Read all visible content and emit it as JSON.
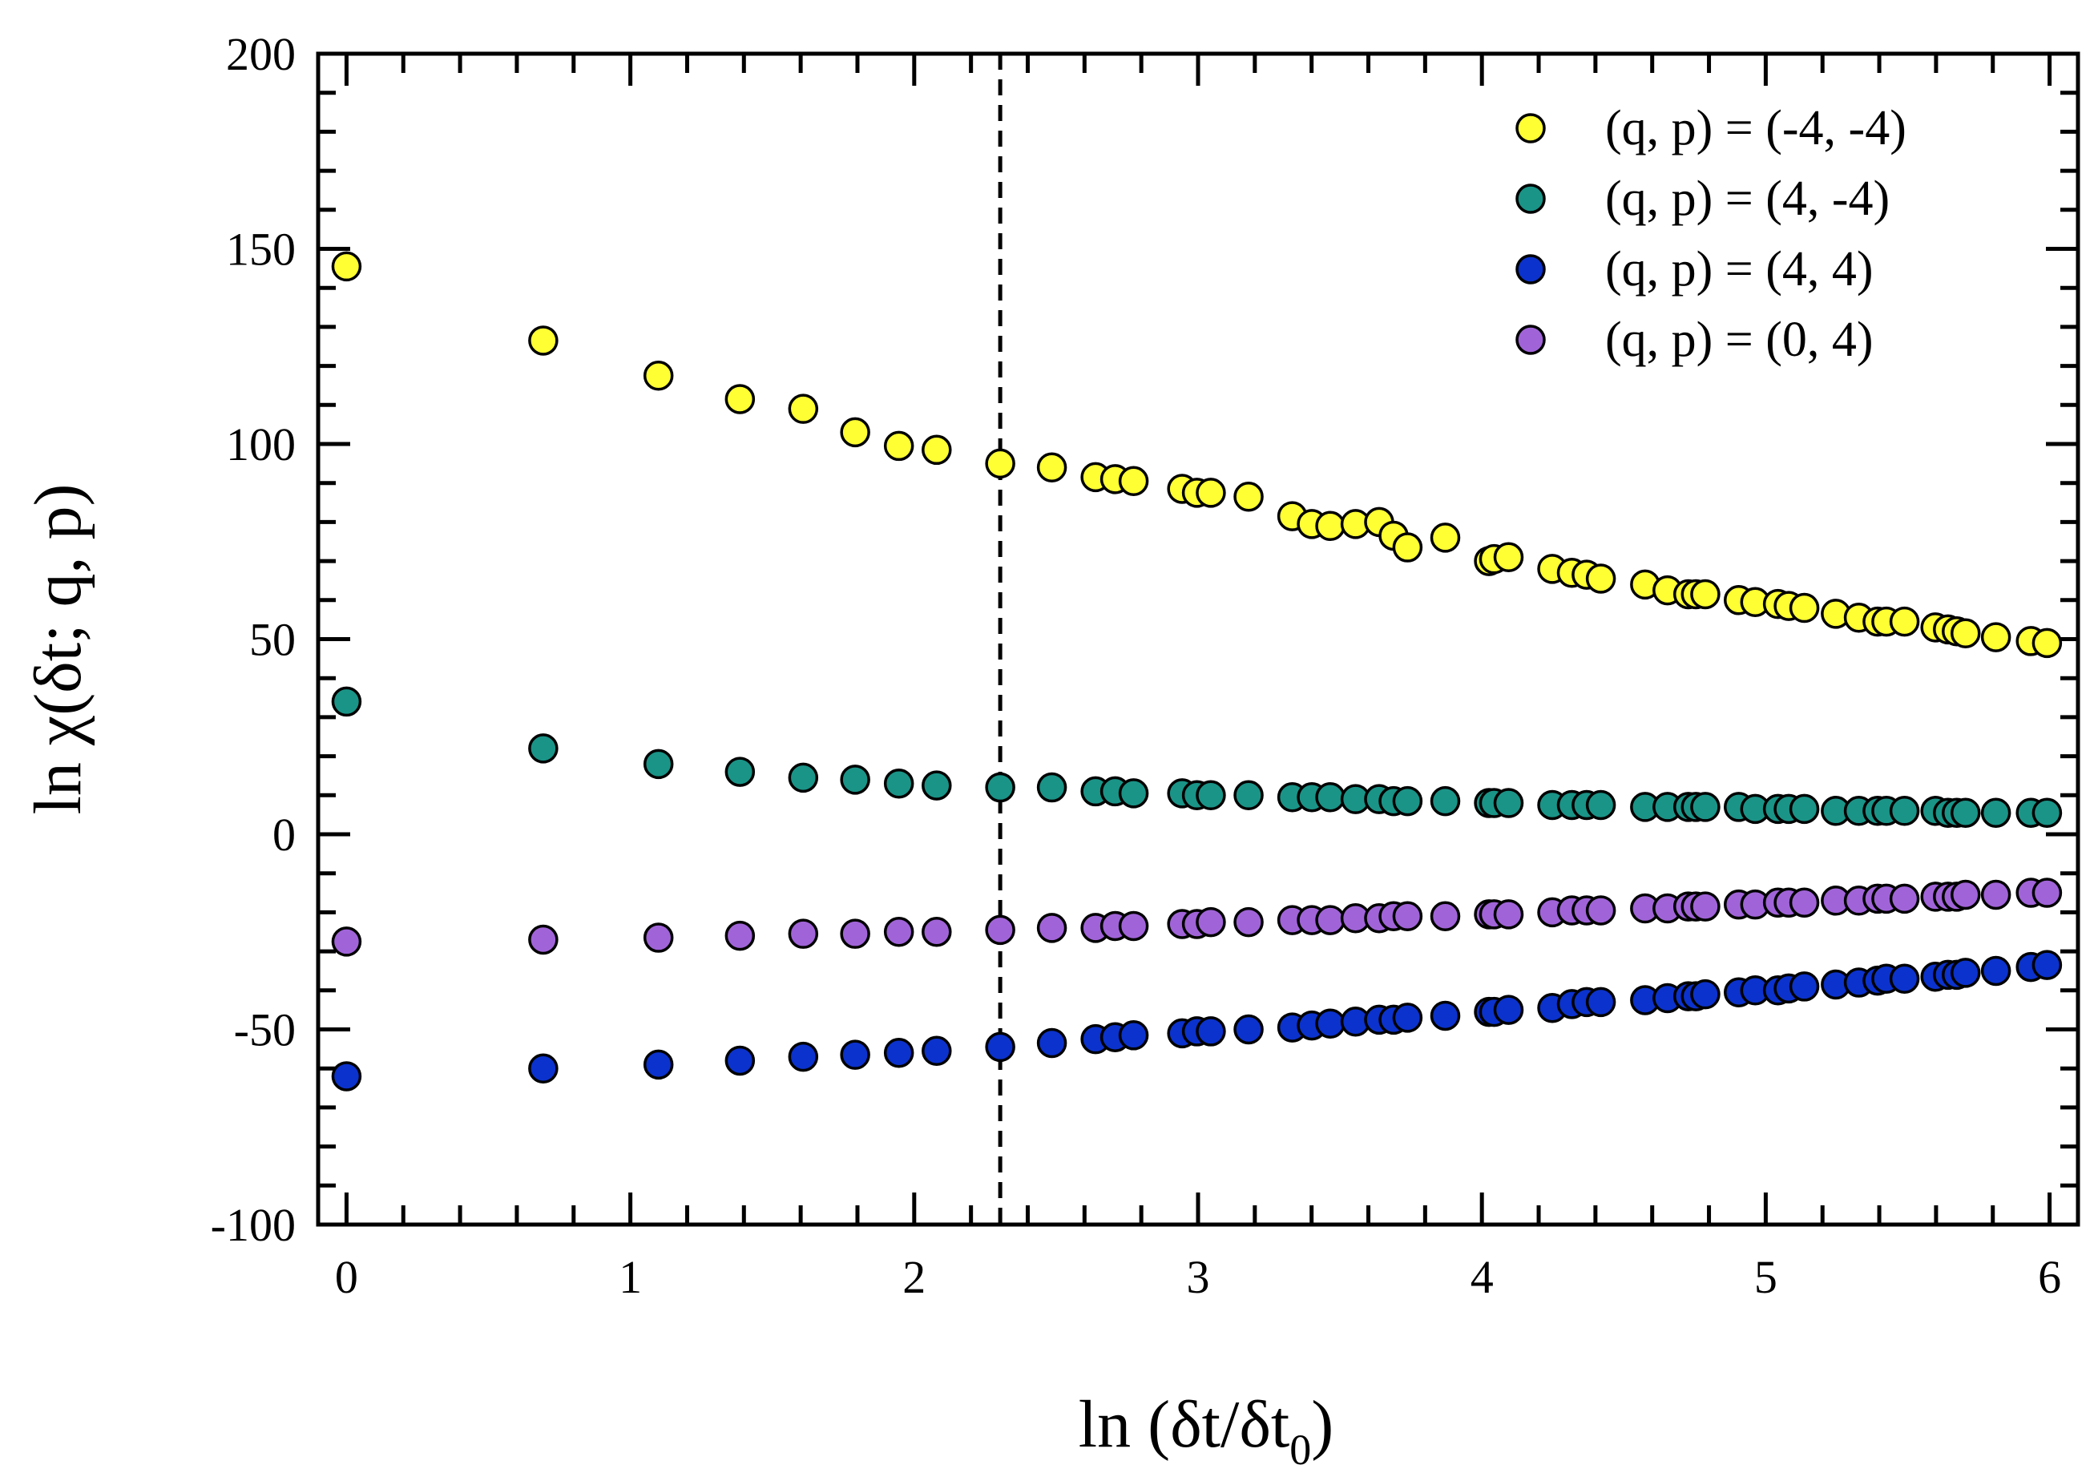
{
  "chart_data": {
    "type": "scatter",
    "title": "",
    "xlabel_main": "ln (δt/δt",
    "xlabel_sub": "0",
    "xlabel_close": ")",
    "ylabel": "ln χ(δt; q, p)",
    "xlim": [
      -0.1,
      6.1
    ],
    "ylim": [
      -100,
      200
    ],
    "xticks": [
      "0",
      "1",
      "2",
      "3",
      "4",
      "5",
      "6"
    ],
    "yticks": [
      "-100",
      "-50",
      "0",
      "50",
      "100",
      "150",
      "200"
    ],
    "reference_line_x": 2.303,
    "legend_position": "top-right",
    "x": [
      0,
      0.693,
      1.099,
      1.386,
      1.609,
      1.792,
      1.946,
      2.079,
      2.303,
      2.485,
      2.639,
      2.708,
      2.773,
      2.944,
      2.996,
      3.045,
      3.178,
      3.332,
      3.401,
      3.466,
      3.555,
      3.638,
      3.689,
      3.738,
      3.871,
      4.025,
      4.043,
      4.094,
      4.248,
      4.317,
      4.369,
      4.419,
      4.575,
      4.654,
      4.727,
      4.754,
      4.787,
      4.905,
      4.963,
      5.043,
      5.081,
      5.136,
      5.247,
      5.328,
      5.394,
      5.425,
      5.489,
      5.598,
      5.642,
      5.673,
      5.704,
      5.811,
      5.934,
      5.991
    ],
    "series": [
      {
        "name": "(q, p) = (-4, -4)",
        "color": "#ffff33",
        "y": [
          145.5,
          126.5,
          117.5,
          111.5,
          109,
          103,
          99.5,
          98.5,
          95,
          94,
          91.5,
          91,
          90.5,
          88.5,
          87.5,
          87.5,
          86.5,
          81.5,
          79.5,
          79,
          79.5,
          80,
          76.5,
          73.5,
          76,
          70,
          70.5,
          71,
          68,
          67,
          66.5,
          65.5,
          64,
          62.5,
          61.5,
          61.5,
          61.5,
          60,
          59.5,
          59,
          58.5,
          58,
          56.5,
          55.5,
          54.5,
          54.5,
          54.5,
          53,
          52.5,
          52,
          51.5,
          50.5,
          49.5,
          49
        ]
      },
      {
        "name": "(q, p) = (4,  -4)",
        "color": "#1a9487",
        "y": [
          34,
          22,
          18,
          16,
          14.5,
          14,
          13,
          12.5,
          12,
          12,
          11,
          11,
          10.5,
          10.5,
          10,
          10,
          10,
          9.5,
          9.5,
          9.5,
          9,
          9,
          8.5,
          8.5,
          8.5,
          8,
          8,
          8,
          7.5,
          7.5,
          7.5,
          7.5,
          7,
          7,
          7,
          7,
          7,
          7,
          6.5,
          6.5,
          6.5,
          6.5,
          6,
          6,
          6,
          6,
          6,
          6,
          5.5,
          5.5,
          5.5,
          5.5,
          5.5,
          5.5
        ]
      },
      {
        "name": "(q, p) = (4,  4)",
        "color": "#0b32cc",
        "y": [
          -62,
          -60,
          -59,
          -58,
          -57,
          -56.5,
          -56,
          -55.5,
          -54.5,
          -53.5,
          -52.5,
          -52,
          -51.5,
          -51,
          -50.5,
          -50.5,
          -50,
          -49.5,
          -49,
          -48.5,
          -48,
          -47.5,
          -47.5,
          -47,
          -46.5,
          -45.5,
          -45.5,
          -45,
          -44.5,
          -43.5,
          -43,
          -43,
          -42.5,
          -42,
          -41.5,
          -41.5,
          -41,
          -40.5,
          -40,
          -40,
          -39.5,
          -39,
          -38.5,
          -38,
          -37.5,
          -37,
          -37,
          -36.5,
          -36,
          -36,
          -35.5,
          -35,
          -34,
          -33.5
        ]
      },
      {
        "name": "(q, p) = (0,  4)",
        "color": "#a064d8",
        "y": [
          -27.5,
          -27,
          -26.5,
          -26,
          -25.5,
          -25.5,
          -25,
          -25,
          -24.5,
          -24,
          -24,
          -23.5,
          -23.5,
          -23,
          -23,
          -22.5,
          -22.5,
          -22,
          -22,
          -22,
          -21.5,
          -21.5,
          -21,
          -21,
          -21,
          -20.5,
          -20.5,
          -20.5,
          -20,
          -19.5,
          -19.5,
          -19.5,
          -19,
          -19,
          -18.5,
          -18.5,
          -18.5,
          -18,
          -18,
          -17.5,
          -17.5,
          -17.5,
          -17,
          -17,
          -16.5,
          -16.5,
          -16.5,
          -16,
          -16,
          -16,
          -15.5,
          -15.5,
          -15,
          -15
        ]
      }
    ]
  }
}
